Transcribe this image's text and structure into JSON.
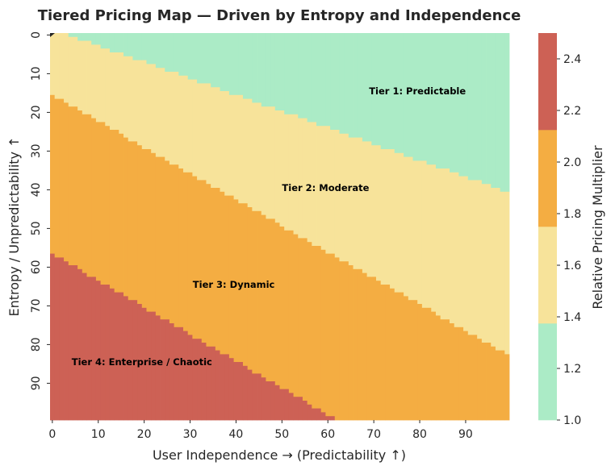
{
  "chart_data": {
    "type": "heatmap",
    "title": "Tiered Pricing Map — Driven by Entropy and Independence",
    "xlabel": "User Independence → (Predictability ↑)",
    "ylabel": "Entropy / Unpredictability ↑",
    "colorbar_label": "Relative Pricing Multiplier",
    "grid_size": [
      100,
      100
    ],
    "xlim": [
      0,
      100
    ],
    "ylim": [
      0,
      100
    ],
    "x_ticks": [
      "0",
      "10",
      "20",
      "30",
      "40",
      "50",
      "60",
      "70",
      "80",
      "90"
    ],
    "y_ticks": [
      "0",
      "10",
      "20",
      "30",
      "40",
      "50",
      "60",
      "70",
      "80",
      "90"
    ],
    "colorbar": {
      "range": [
        1.0,
        2.5
      ],
      "ticks": [
        "1.0",
        "1.2",
        "1.4",
        "1.6",
        "1.8",
        "2.0",
        "2.2",
        "2.4"
      ]
    },
    "tiers": [
      {
        "name": "Tier 1: Predictable",
        "multiplier_range": [
          1.0,
          1.375
        ],
        "color": "#abebc6",
        "row_start_at_col0": null,
        "row_start_at_col99": null
      },
      {
        "name": "Tier 2: Moderate",
        "multiplier_range": [
          1.375,
          1.75
        ],
        "color": "#f7e39a",
        "boundary_row_at_col0": -1,
        "boundary_row_at_col99": 41
      },
      {
        "name": "Tier 3: Dynamic",
        "multiplier_range": [
          1.75,
          2.125
        ],
        "color": "#f4ad42",
        "boundary_row_at_col0": 16,
        "boundary_row_at_col99": 83
      },
      {
        "name": "Tier 4: Enterprise / Chaotic",
        "multiplier_range": [
          2.125,
          2.5
        ],
        "color": "#cd6155",
        "boundary_row_at_col0": 57,
        "boundary_row_at_col62": 100
      }
    ],
    "annotations": [
      {
        "text": "Tier 1: Predictable",
        "x": 80,
        "y": 15
      },
      {
        "text": "Tier 2: Moderate",
        "x": 60,
        "y": 40
      },
      {
        "text": "Tier 3: Dynamic",
        "x": 40,
        "y": 65
      },
      {
        "text": "Tier 4: Enterprise / Chaotic",
        "x": 20,
        "y": 85
      }
    ]
  }
}
